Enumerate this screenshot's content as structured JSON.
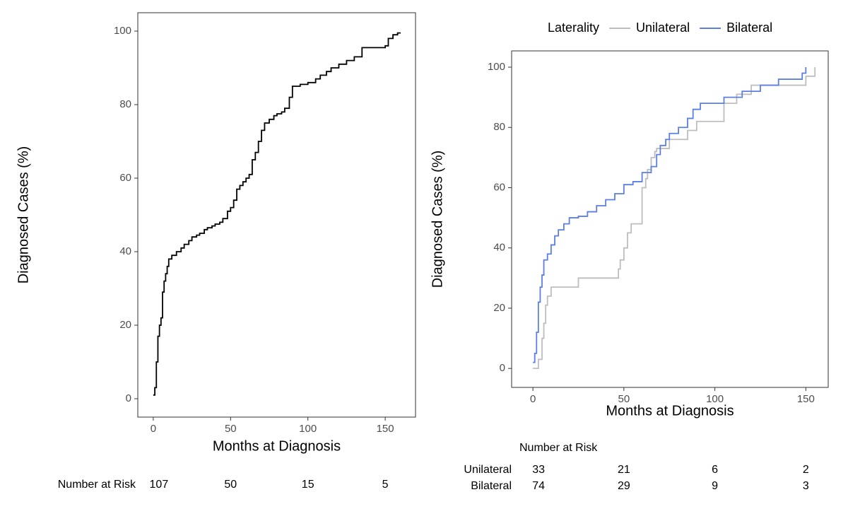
{
  "chart_data": [
    {
      "type": "step",
      "xlabel": "Months at Diagnosis",
      "ylabel": "Diagnosed Cases (%)",
      "xlim": [
        -10,
        169.6
      ],
      "ylim": [
        -5,
        105
      ],
      "xticks": [
        0,
        50,
        100,
        150
      ],
      "yticks": [
        0,
        20,
        40,
        60,
        80,
        100
      ],
      "series": [
        {
          "color": "#000000",
          "x": [
            0,
            1,
            2,
            3,
            4,
            5,
            6,
            7,
            8,
            9,
            10,
            12,
            15,
            18,
            20,
            23,
            25,
            28,
            30,
            33,
            35,
            38,
            40,
            43,
            45,
            48,
            50,
            52,
            54,
            56,
            58,
            60,
            62,
            64,
            66,
            68,
            70,
            72,
            75,
            78,
            80,
            83,
            85,
            88,
            90,
            95,
            100,
            105,
            108,
            112,
            115,
            120,
            125,
            130,
            135,
            140,
            150,
            152,
            155,
            158,
            160
          ],
          "values": [
            1,
            3,
            10,
            17,
            20,
            22,
            29,
            32,
            34,
            36,
            38,
            39,
            40,
            41,
            42,
            43,
            44,
            44.5,
            45,
            46,
            46.5,
            47,
            47.5,
            48,
            49,
            51,
            52,
            54,
            57,
            58,
            59,
            60,
            61,
            65,
            67,
            70,
            73,
            75,
            76,
            77,
            77.5,
            78,
            79,
            82,
            85,
            85.5,
            86,
            87,
            88,
            89,
            90,
            91,
            92,
            93,
            95.5,
            95.5,
            96,
            98,
            99,
            99.5,
            99.5
          ]
        }
      ],
      "risk_table": {
        "title": "Number at Risk",
        "rows": [
          {
            "values": [
              107,
              50,
              15,
              5
            ]
          }
        ]
      }
    },
    {
      "type": "step",
      "xlabel": "Months at Diagnosis",
      "ylabel": "Diagnosed Cases (%)",
      "xlim": [
        -11.7,
        162.3
      ],
      "ylim": [
        -6.3,
        105.4
      ],
      "xticks": [
        0,
        50,
        100,
        150
      ],
      "yticks": [
        0,
        20,
        40,
        60,
        80,
        100
      ],
      "legend": {
        "title": "Laterality",
        "position": "top"
      },
      "series": [
        {
          "name": "Unilateral",
          "color": "#bdbdbd",
          "x": [
            0,
            3,
            5,
            6,
            7,
            8,
            10,
            25,
            45,
            47,
            48,
            50,
            52,
            54,
            57,
            60,
            62,
            63,
            65,
            67,
            68,
            70,
            75,
            85,
            90,
            95,
            105,
            108,
            112,
            120,
            130,
            140,
            150,
            155
          ],
          "values": [
            0,
            3,
            10,
            15,
            21,
            24,
            27,
            30,
            30,
            33,
            36,
            40,
            45,
            48,
            48,
            60,
            63,
            66,
            70,
            72,
            73,
            73,
            76,
            79,
            82,
            82,
            88,
            88,
            91,
            94,
            94,
            94,
            97,
            100
          ]
        },
        {
          "name": "Bilateral",
          "color": "#5b7fe6",
          "x": [
            0,
            1,
            2,
            3,
            4,
            5,
            6,
            8,
            10,
            12,
            14,
            17,
            20,
            25,
            30,
            35,
            40,
            45,
            50,
            55,
            60,
            65,
            68,
            70,
            73,
            75,
            80,
            85,
            88,
            92,
            100,
            105,
            115,
            125,
            135,
            145,
            148,
            150
          ],
          "values": [
            2,
            5,
            12,
            22,
            27,
            31,
            36,
            38,
            41,
            44,
            46,
            48,
            50,
            50.5,
            52,
            54,
            56,
            58,
            61,
            62,
            65,
            67,
            71,
            74,
            76,
            78,
            80,
            83,
            86,
            88,
            88,
            90,
            92,
            94,
            96,
            96,
            98,
            100
          ]
        }
      ],
      "risk_table": {
        "title": "Number at Risk",
        "rows": [
          {
            "name": "Unilateral",
            "values": [
              33,
              21,
              6,
              2
            ]
          },
          {
            "name": "Bilateral",
            "values": [
              74,
              29,
              9,
              3
            ]
          }
        ]
      }
    }
  ]
}
